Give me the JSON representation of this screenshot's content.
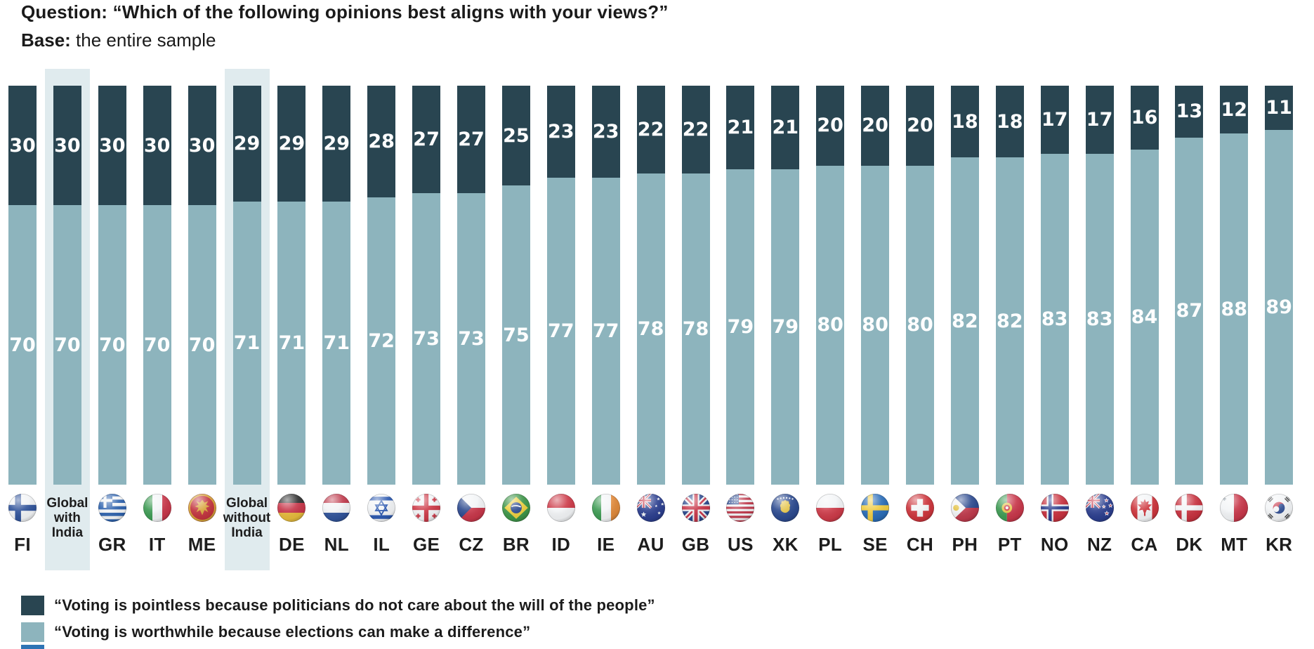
{
  "header": {
    "question_prefix": "Question:",
    "question_text": " “Which of the following opinions best aligns with your views?”",
    "base_prefix": "Base:",
    "base_text": " the entire sample"
  },
  "colors": {
    "pointless_dark": "#294551",
    "worthwhile_light": "#8db4bd",
    "highlight_band": "#e0ebee",
    "cutoff_swatch_blue": "#2e74b5",
    "value_label": "#ffffff",
    "text": "#1a1a1a"
  },
  "legend": {
    "items": [
      {
        "label": "“Voting is pointless because politicians do not care about the will of the people”",
        "color_key": "pointless_dark"
      },
      {
        "label": "“Voting is worthwhile because elections can make a difference”",
        "color_key": "worthwhile_light"
      }
    ],
    "partial_third_swatch": {
      "visible_cut_off": true,
      "color_key": "cutoff_swatch_blue"
    }
  },
  "chart_data": {
    "type": "bar",
    "stacked": true,
    "orientation": "vertical",
    "unit": "%",
    "ylim": [
      0,
      100
    ],
    "grid": false,
    "legend_position": "bottom-left",
    "categories": [
      "FI",
      "Global with India",
      "GR",
      "IT",
      "ME",
      "Global without India",
      "DE",
      "NL",
      "IL",
      "GE",
      "CZ",
      "BR",
      "ID",
      "IE",
      "AU",
      "GB",
      "US",
      "XK",
      "PL",
      "SE",
      "CH",
      "PH",
      "PT",
      "NO",
      "NZ",
      "CA",
      "DK",
      "MT",
      "KR"
    ],
    "highlighted_categories": [
      "Global with India",
      "Global without India"
    ],
    "flags": [
      "finland",
      null,
      "greece",
      "italy",
      "montenegro",
      null,
      "germany",
      "netherlands",
      "israel",
      "georgia",
      "czechia",
      "brazil",
      "indonesia",
      "ireland",
      "australia",
      "uk",
      "usa",
      "kosovo",
      "poland",
      "sweden",
      "switzerland",
      "philippines",
      "portugal",
      "norway",
      "new-zealand",
      "canada",
      "denmark",
      "malta",
      "south-korea"
    ],
    "series": [
      {
        "name": "“Voting is pointless because politicians do not care about the will of the people”",
        "values": [
          30,
          30,
          30,
          30,
          30,
          29,
          29,
          29,
          28,
          27,
          27,
          25,
          23,
          23,
          22,
          22,
          21,
          21,
          20,
          20,
          20,
          18,
          18,
          17,
          17,
          16,
          13,
          12,
          11
        ]
      },
      {
        "name": "“Voting is worthwhile because elections can make a difference”",
        "values": [
          70,
          70,
          70,
          70,
          70,
          71,
          71,
          71,
          72,
          73,
          73,
          75,
          77,
          77,
          78,
          78,
          79,
          79,
          80,
          80,
          80,
          82,
          82,
          83,
          83,
          84,
          87,
          88,
          89
        ]
      }
    ]
  }
}
